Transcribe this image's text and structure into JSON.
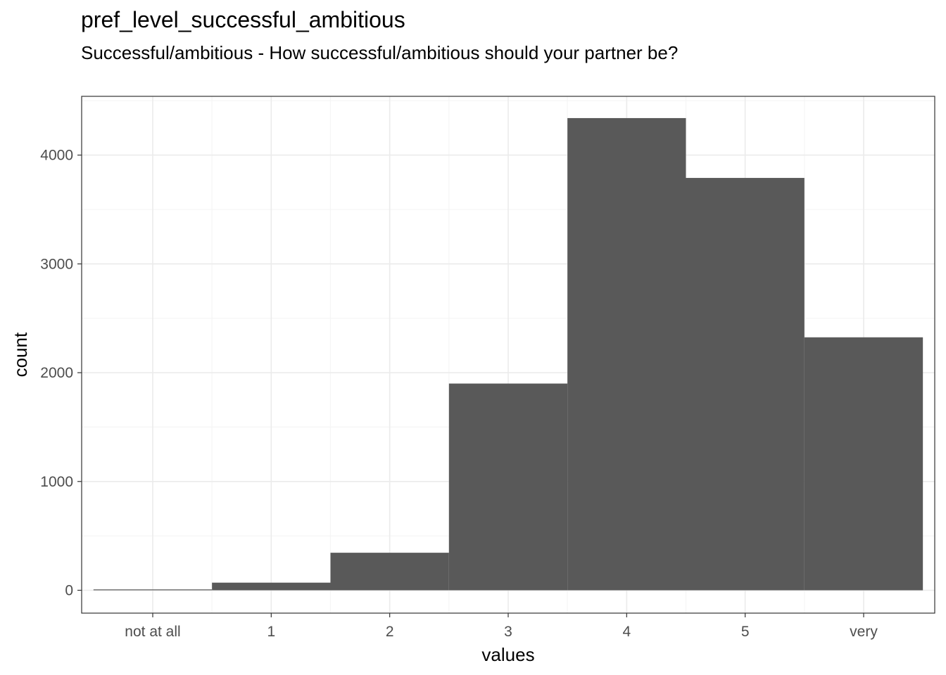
{
  "chart_data": {
    "type": "bar",
    "title": "pref_level_successful_ambitious",
    "subtitle": "Successful/ambitious - How successful/ambitious should your partner be?",
    "xlabel": "values",
    "ylabel": "count",
    "categories": [
      "not at all",
      "1",
      "2",
      "3",
      "4",
      "5",
      "very"
    ],
    "values": [
      8,
      70,
      345,
      1900,
      4340,
      3790,
      2325
    ],
    "ylim": [
      -210,
      4540
    ],
    "yticks": [
      0,
      1000,
      2000,
      3000,
      4000
    ],
    "grid": true,
    "legend": "none",
    "colors": {
      "bar": "#595959",
      "grid_major": "#ebebeb",
      "grid_minor": "#f5f5f5",
      "panel_border": "#333333"
    }
  }
}
